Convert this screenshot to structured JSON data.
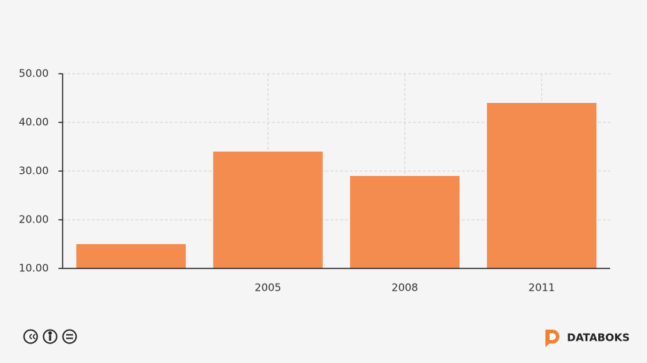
{
  "chart_data": {
    "type": "bar",
    "categories": [
      null,
      "2005",
      "2008",
      "2011"
    ],
    "values": [
      15,
      34,
      29,
      44
    ],
    "color": "#f48c50",
    "ylim": [
      10,
      50
    ],
    "yticks": [
      {
        "value": 10,
        "label": "10.00"
      },
      {
        "value": 20,
        "label": "20.00"
      },
      {
        "value": 30,
        "label": "30.00"
      },
      {
        "value": 40,
        "label": "40.00"
      },
      {
        "value": 50,
        "label": "50.00"
      }
    ],
    "grid": true
  },
  "footer": {
    "brand": "DATABOKS"
  }
}
